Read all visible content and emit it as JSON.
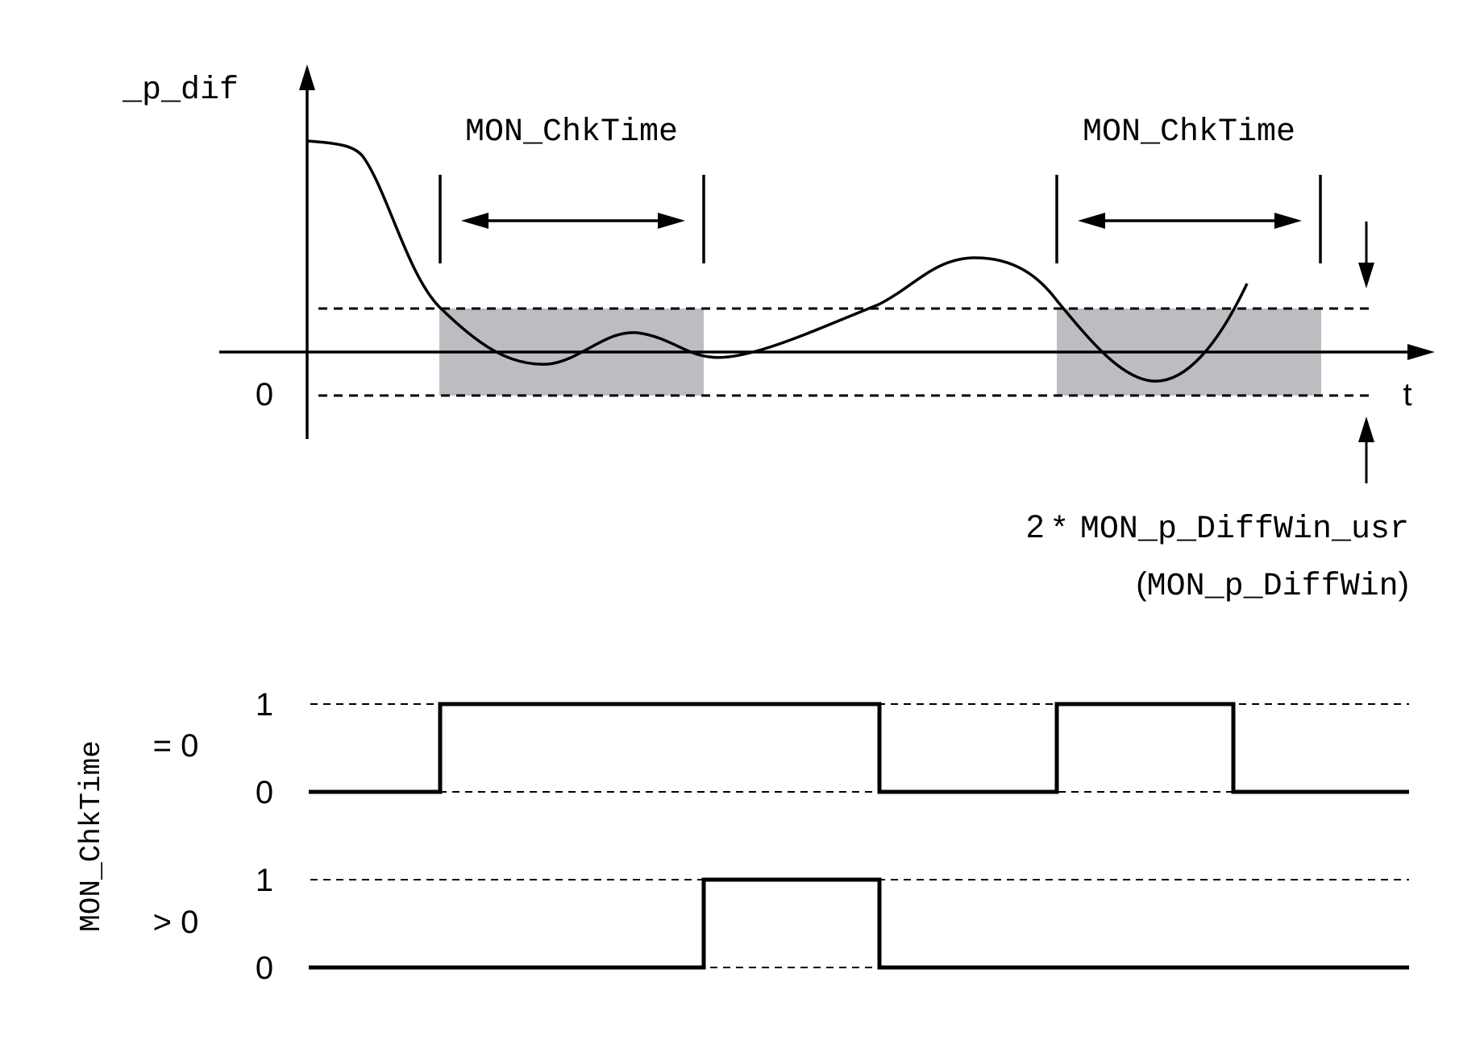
{
  "top_plot": {
    "y_axis_label": "_p_dif",
    "x_axis_label": "t",
    "zero_label": "0",
    "window_labels": [
      "MON_ChkTime",
      "MON_ChkTime"
    ],
    "window_label_prefix": "2 *",
    "window_label_param": "MON_p_DiffWin_usr",
    "window_label_alt_open": "(",
    "window_label_alt_param": "MON_p_DiffWin",
    "window_label_alt_close": ")"
  },
  "bottom_plot": {
    "side_label": "MON_ChkTime",
    "trace_eq0": {
      "condition_label": "= 0",
      "high_label": "1",
      "low_label": "0"
    },
    "trace_gt0": {
      "condition_label": "> 0",
      "high_label": "1",
      "low_label": "0"
    }
  },
  "colors": {
    "stroke": "#000000",
    "window_fill": "#bcbdc0",
    "background": "#ffffff"
  }
}
